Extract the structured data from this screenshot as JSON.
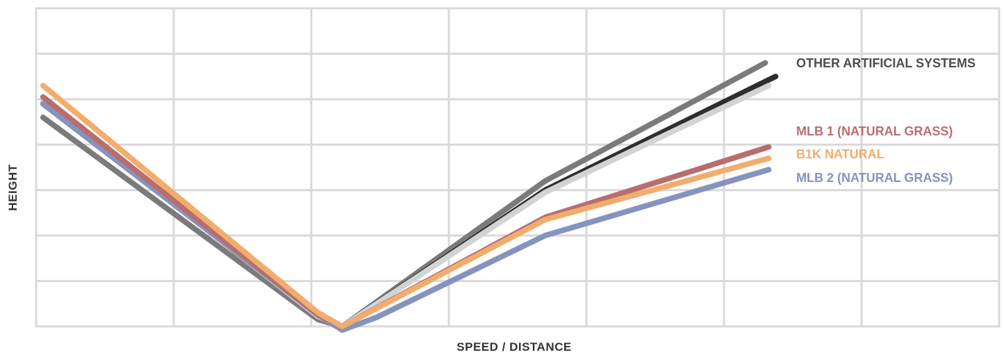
{
  "chart_data": {
    "type": "line",
    "xlabel": "SPEED / DISTANCE",
    "ylabel": "HEIGHT",
    "xlim": [
      0,
      14
    ],
    "ylim": [
      0,
      7
    ],
    "grid": true,
    "legend": "right",
    "series": [
      {
        "name": "OTHER ARTIFICIAL SYSTEMS",
        "color": "#7b7b7b",
        "label_color": "#4d4d4d",
        "x": [
          0.1,
          4.1,
          4.45,
          7.4,
          10.6
        ],
        "y": [
          4.6,
          0.15,
          0.0,
          3.2,
          5.8
        ]
      },
      {
        "name": "",
        "color": "#2e2e2e",
        "x": [
          0.1,
          4.1,
          4.45,
          7.4,
          10.75
        ],
        "y": [
          4.9,
          0.25,
          0.0,
          3.0,
          5.5
        ]
      },
      {
        "name": "",
        "color": "#d2d3d5",
        "x": [
          0.1,
          4.1,
          4.45,
          7.4,
          10.65
        ],
        "y": [
          4.95,
          0.22,
          0.0,
          2.95,
          5.3
        ]
      },
      {
        "name": "MLB 1 (NATURAL GRASS)",
        "color": "#b86e6e",
        "label_color": "#b86e6e",
        "x": [
          0.1,
          4.1,
          4.45,
          7.4,
          10.65
        ],
        "y": [
          5.05,
          0.25,
          0.0,
          2.4,
          3.95
        ]
      },
      {
        "name": "B1K NATURAL",
        "color": "#f1ad6e",
        "label_color": "#f1ad6e",
        "x": [
          0.1,
          4.1,
          4.45,
          7.4,
          10.65
        ],
        "y": [
          5.3,
          0.3,
          0.0,
          2.35,
          3.7
        ]
      },
      {
        "name": "MLB 2 (NATURAL GRASS)",
        "color": "#8693bf",
        "label_color": "#8693bf",
        "x": [
          0.1,
          4.1,
          4.45,
          4.95,
          7.4,
          10.65
        ],
        "y": [
          4.9,
          0.25,
          -0.08,
          0.2,
          2.0,
          3.45
        ]
      }
    ]
  }
}
